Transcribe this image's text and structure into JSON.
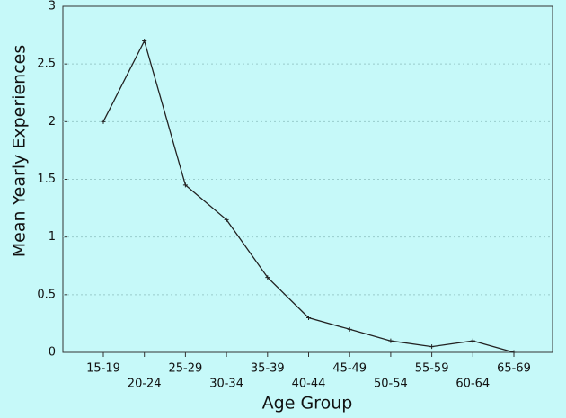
{
  "chart_data": {
    "type": "line",
    "x_label": "Age Group",
    "y_label": "Mean Yearly Experiences",
    "categories": [
      "15-19",
      "20-24",
      "25-29",
      "30-34",
      "35-39",
      "40-44",
      "45-49",
      "50-54",
      "55-59",
      "60-64",
      "65-69"
    ],
    "values": [
      2.0,
      2.7,
      1.45,
      1.15,
      0.65,
      0.3,
      0.2,
      0.1,
      0.05,
      0.1,
      0.0
    ],
    "color": "#222222",
    "ylim": [
      0,
      3
    ],
    "yticks": [
      0,
      0.5,
      1,
      1.5,
      2,
      2.5,
      3
    ],
    "grid": true
  }
}
